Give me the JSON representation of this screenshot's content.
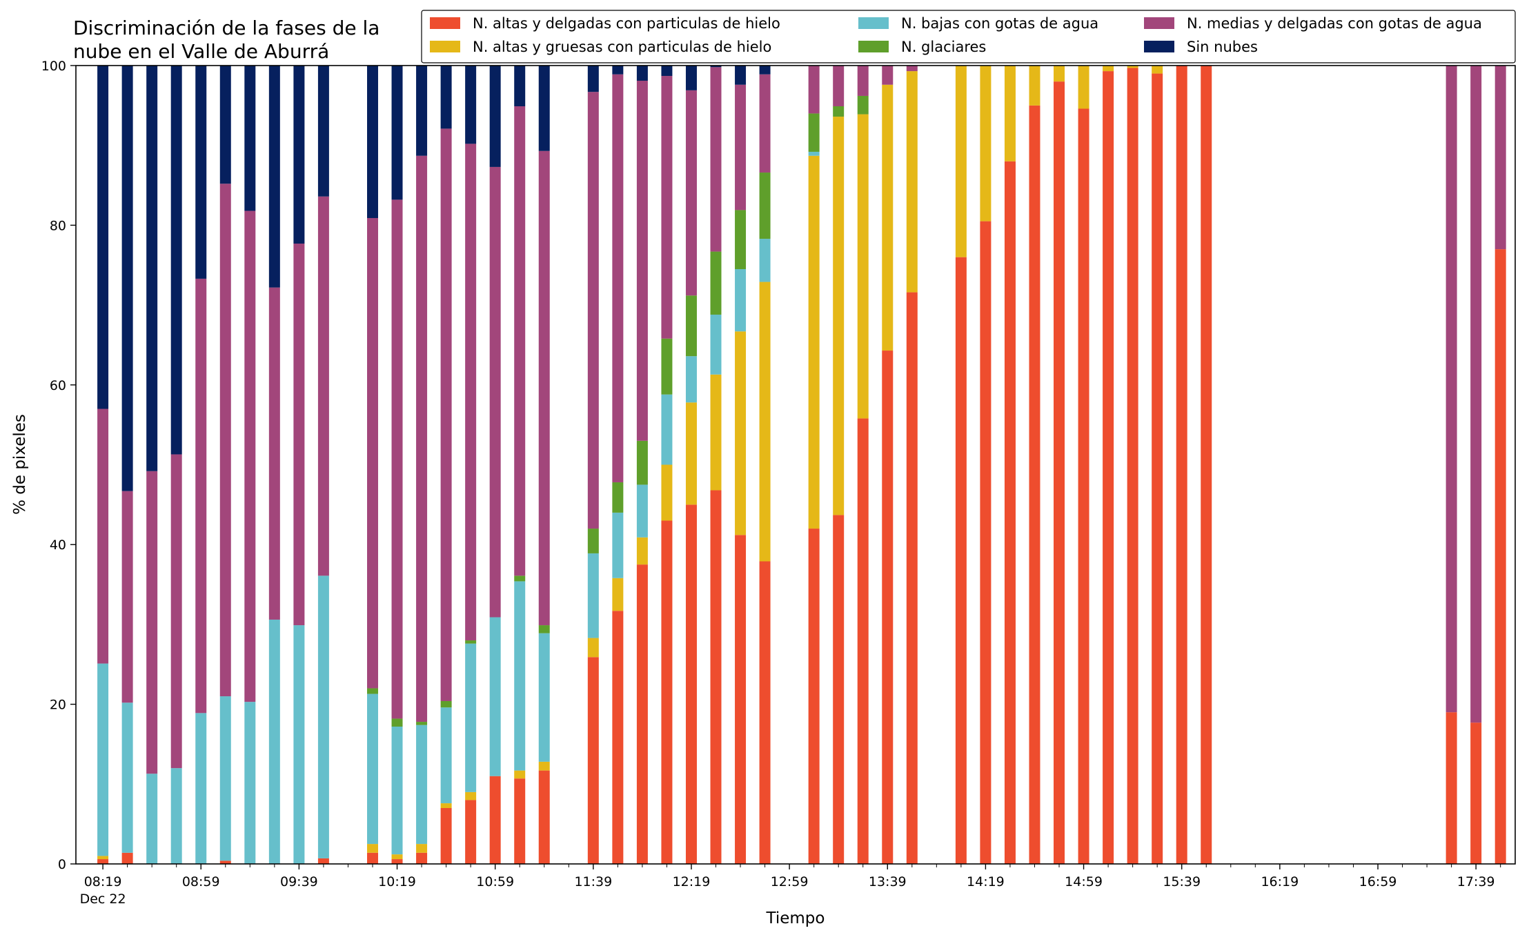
{
  "chart_data": {
    "type": "bar",
    "stacked": true,
    "title_lines": [
      "Discriminación de la fases de la",
      "nube en el Valle de Aburrá"
    ],
    "xlabel": "Tiempo",
    "ylabel": "% de pixeles",
    "ylim": [
      0,
      100
    ],
    "yticks": [
      "0",
      "20",
      "40",
      "60",
      "80",
      "100"
    ],
    "xlim_minutes": [
      8.0,
      595.0
    ],
    "xtick_labels": [
      "08:19",
      "08:59",
      "09:39",
      "10:19",
      "10:59",
      "11:39",
      "12:19",
      "12:59",
      "13:39",
      "14:19",
      "14:59",
      "15:39",
      "16:19",
      "16:59",
      "17:39"
    ],
    "xtick_date": "Dec 22",
    "grid": false,
    "legend_position": "top-right",
    "legend_order": [
      0,
      1,
      2,
      3,
      4,
      5
    ],
    "series": [
      {
        "name": "N. altas y delgadas con particulas de hielo",
        "color": "#EE4D2E"
      },
      {
        "name": "N. altas y gruesas con particulas de hielo",
        "color": "#E5B818"
      },
      {
        "name": "N. bajas con gotas de agua",
        "color": "#66BFCB"
      },
      {
        "name": "N. glaciares",
        "color": "#5F9F2B"
      },
      {
        "name": "N. medias y delgadas con gotas de agua",
        "color": "#A2467B"
      },
      {
        "name": "Sin nubes",
        "color": "#06205E"
      }
    ],
    "bar_width_minutes": 4.5,
    "bars": [
      {
        "t": "08:19",
        "v": [
          0.6,
          0.4,
          24.1,
          0,
          31.9,
          43.0
        ]
      },
      {
        "t": "08:29",
        "v": [
          1.4,
          0,
          18.8,
          0,
          26.5,
          53.3
        ]
      },
      {
        "t": "08:39",
        "v": [
          0,
          0,
          11.3,
          0,
          37.9,
          50.8
        ]
      },
      {
        "t": "08:49",
        "v": [
          0,
          0,
          12.0,
          0,
          39.3,
          48.7
        ]
      },
      {
        "t": "08:59",
        "v": [
          0,
          0,
          18.9,
          0,
          54.4,
          26.7
        ]
      },
      {
        "t": "09:09",
        "v": [
          0.4,
          0,
          20.6,
          0,
          64.2,
          14.8
        ]
      },
      {
        "t": "09:19",
        "v": [
          0,
          0,
          20.3,
          0,
          61.5,
          18.2
        ]
      },
      {
        "t": "09:29",
        "v": [
          0,
          0,
          30.6,
          0,
          41.6,
          27.8
        ]
      },
      {
        "t": "09:39",
        "v": [
          0,
          0,
          29.9,
          0,
          47.8,
          22.3
        ]
      },
      {
        "t": "09:49",
        "v": [
          0.7,
          0,
          35.4,
          0,
          47.5,
          16.4
        ]
      },
      {
        "t": "10:09",
        "v": [
          1.4,
          1.1,
          18.8,
          0.7,
          58.9,
          19.1
        ]
      },
      {
        "t": "10:19",
        "v": [
          0.6,
          0.6,
          16.0,
          1.0,
          65.0,
          16.8
        ]
      },
      {
        "t": "10:29",
        "v": [
          1.4,
          1.1,
          14.9,
          0.4,
          70.9,
          11.3
        ]
      },
      {
        "t": "10:39",
        "v": [
          7.0,
          0.6,
          12.0,
          0.8,
          71.7,
          7.9
        ]
      },
      {
        "t": "10:49",
        "v": [
          8.0,
          1.0,
          18.6,
          0.4,
          62.2,
          9.8
        ]
      },
      {
        "t": "10:59",
        "v": [
          11.0,
          0,
          19.9,
          0,
          56.4,
          12.7
        ]
      },
      {
        "t": "11:09",
        "v": [
          10.7,
          1.0,
          23.7,
          0.7,
          58.8,
          5.1
        ]
      },
      {
        "t": "11:19",
        "v": [
          11.7,
          1.1,
          16.1,
          1.0,
          59.4,
          10.7
        ]
      },
      {
        "t": "11:39",
        "v": [
          25.9,
          2.4,
          10.6,
          3.1,
          54.7,
          3.3
        ]
      },
      {
        "t": "11:49",
        "v": [
          31.7,
          4.1,
          8.2,
          3.8,
          51.1,
          1.1
        ]
      },
      {
        "t": "11:59",
        "v": [
          37.5,
          3.4,
          6.6,
          5.5,
          45.1,
          1.9
        ]
      },
      {
        "t": "12:09",
        "v": [
          43.0,
          7.0,
          8.8,
          7.0,
          32.9,
          1.3
        ]
      },
      {
        "t": "12:19",
        "v": [
          45.0,
          12.8,
          5.8,
          7.6,
          25.7,
          3.1
        ]
      },
      {
        "t": "12:29",
        "v": [
          46.8,
          14.5,
          7.5,
          7.9,
          23.1,
          0.2
        ]
      },
      {
        "t": "12:39",
        "v": [
          41.2,
          25.5,
          7.8,
          7.4,
          15.7,
          2.4
        ]
      },
      {
        "t": "12:49",
        "v": [
          37.9,
          35.0,
          5.4,
          8.3,
          12.3,
          1.1
        ]
      },
      {
        "t": "13:09",
        "v": [
          42.0,
          46.7,
          0.5,
          4.8,
          6.0,
          0
        ]
      },
      {
        "t": "13:19",
        "v": [
          43.7,
          49.9,
          0,
          1.3,
          5.1,
          0
        ]
      },
      {
        "t": "13:29",
        "v": [
          55.8,
          38.1,
          0,
          2.3,
          3.8,
          0
        ]
      },
      {
        "t": "13:39",
        "v": [
          64.3,
          33.3,
          0,
          0,
          2.4,
          0
        ]
      },
      {
        "t": "13:49",
        "v": [
          71.6,
          27.7,
          0,
          0,
          0.7,
          0
        ]
      },
      {
        "t": "14:09",
        "v": [
          76.0,
          24.0,
          0,
          0,
          0,
          0
        ]
      },
      {
        "t": "14:19",
        "v": [
          80.5,
          19.5,
          0,
          0,
          0,
          0
        ]
      },
      {
        "t": "14:29",
        "v": [
          88.0,
          12.0,
          0,
          0,
          0,
          0
        ]
      },
      {
        "t": "14:39",
        "v": [
          95.0,
          5.0,
          0,
          0,
          0,
          0
        ]
      },
      {
        "t": "14:49",
        "v": [
          98.0,
          2.0,
          0,
          0,
          0,
          0
        ]
      },
      {
        "t": "14:59",
        "v": [
          94.6,
          5.4,
          0,
          0,
          0,
          0
        ]
      },
      {
        "t": "15:09",
        "v": [
          99.3,
          0.7,
          0,
          0,
          0,
          0
        ]
      },
      {
        "t": "15:19",
        "v": [
          99.7,
          0.3,
          0,
          0,
          0,
          0
        ]
      },
      {
        "t": "15:29",
        "v": [
          99.0,
          1.0,
          0,
          0,
          0,
          0
        ]
      },
      {
        "t": "15:39",
        "v": [
          100,
          0,
          0,
          0,
          0,
          0
        ]
      },
      {
        "t": "15:49",
        "v": [
          100,
          0,
          0,
          0,
          0,
          0
        ]
      },
      {
        "t": "17:29",
        "v": [
          19.0,
          0,
          0,
          0,
          81.0,
          0
        ]
      },
      {
        "t": "17:39",
        "v": [
          17.7,
          0,
          0,
          0,
          82.3,
          0
        ]
      },
      {
        "t": "17:49",
        "v": [
          77.0,
          0,
          0,
          0,
          23.0,
          0
        ]
      }
    ]
  }
}
